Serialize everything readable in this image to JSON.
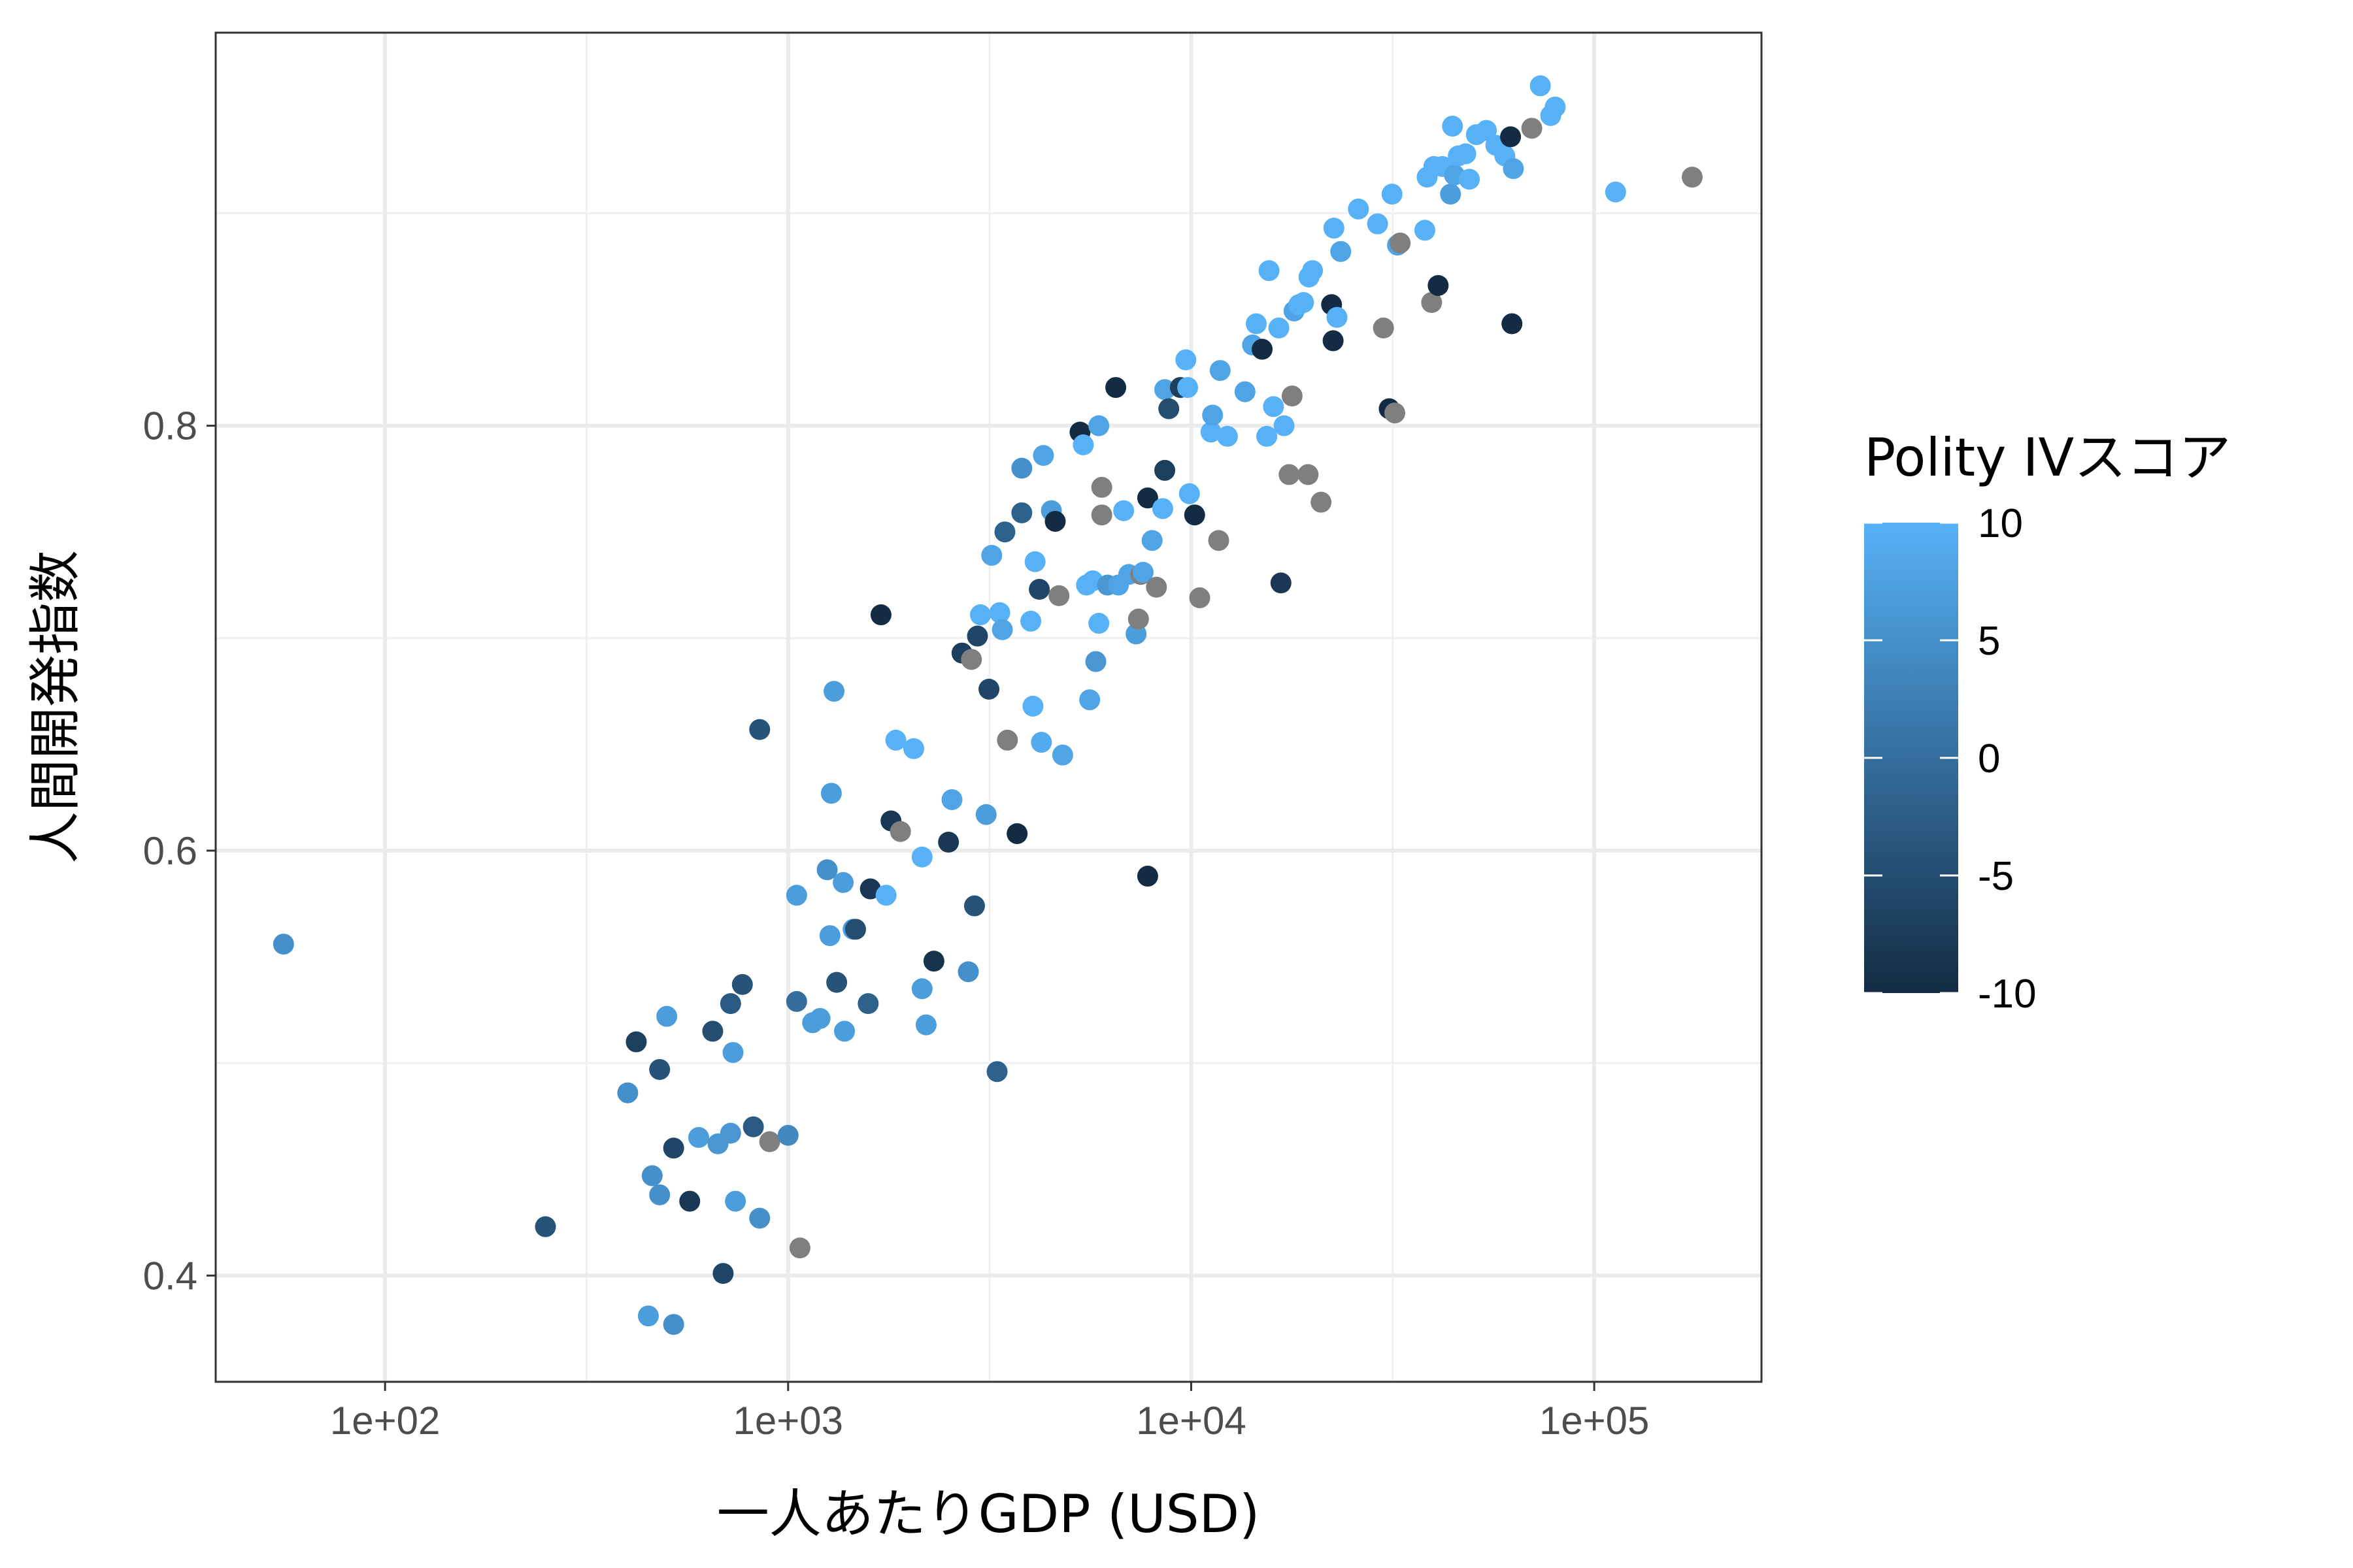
{
  "chart_data": {
    "type": "scatter",
    "title": "",
    "xlabel": "一人あたりGDP (USD)",
    "ylabel": "人間開発指数",
    "x_scale": "log10",
    "xlim": [
      38,
      260000
    ],
    "ylim": [
      0.35,
      0.985
    ],
    "x_ticks": [
      100,
      1000,
      10000,
      100000
    ],
    "x_tick_labels": [
      "1e+02",
      "1e+03",
      "1e+04",
      "1e+05"
    ],
    "y_ticks": [
      0.4,
      0.6,
      0.8
    ],
    "y_tick_labels": [
      "0.4",
      "0.6",
      "0.8"
    ],
    "grid": true,
    "legend": {
      "title": "Polity IVスコア",
      "position": "right",
      "min": -10,
      "max": 10,
      "ticks": [
        10,
        5,
        0,
        -5,
        -10
      ],
      "tick_labels": [
        "10",
        "5",
        "0",
        "-5",
        "-10"
      ],
      "color_low": "#132B43",
      "color_high": "#56B1F7",
      "na_color": "#7F7F7F"
    },
    "points": [
      [
        56,
        0.556,
        5
      ],
      [
        250,
        0.423,
        -4
      ],
      [
        420,
        0.51,
        -7
      ],
      [
        400,
        0.486,
        5
      ],
      [
        480,
        0.497,
        -4
      ],
      [
        500,
        0.522,
        7
      ],
      [
        450,
        0.381,
        7
      ],
      [
        520,
        0.377,
        5
      ],
      [
        460,
        0.447,
        5
      ],
      [
        480,
        0.438,
        5
      ],
      [
        520,
        0.46,
        -6
      ],
      [
        570,
        0.435,
        -8
      ],
      [
        600,
        0.465,
        7
      ],
      [
        650,
        0.515,
        -5
      ],
      [
        670,
        0.462,
        6
      ],
      [
        690,
        0.401,
        -6
      ],
      [
        720,
        0.467,
        6
      ],
      [
        730,
        0.505,
        7
      ],
      [
        740,
        0.435,
        7
      ],
      [
        720,
        0.528,
        -3
      ],
      [
        770,
        0.537,
        -4
      ],
      [
        820,
        0.47,
        -3
      ],
      [
        850,
        0.657,
        -4
      ],
      [
        850,
        0.427,
        5
      ],
      [
        900,
        0.463,
        null
      ],
      [
        1000,
        0.466,
        4
      ],
      [
        1050,
        0.529,
        0
      ],
      [
        1070,
        0.413,
        null
      ],
      [
        1050,
        0.579,
        7
      ],
      [
        1150,
        0.519,
        7
      ],
      [
        1200,
        0.521,
        7
      ],
      [
        1250,
        0.591,
        5
      ],
      [
        1270,
        0.56,
        7
      ],
      [
        1280,
        0.627,
        7
      ],
      [
        1300,
        0.675,
        7
      ],
      [
        1320,
        0.538,
        -4
      ],
      [
        1380,
        0.515,
        7
      ],
      [
        1370,
        0.585,
        7
      ],
      [
        1450,
        0.563,
        7
      ],
      [
        1470,
        0.563,
        -5
      ],
      [
        1580,
        0.528,
        -2
      ],
      [
        1600,
        0.582,
        -8
      ],
      [
        1700,
        0.711,
        -10
      ],
      [
        1750,
        0.579,
        10
      ],
      [
        1800,
        0.614,
        -8
      ],
      [
        1850,
        0.652,
        10
      ],
      [
        1900,
        0.609,
        null
      ],
      [
        2050,
        0.648,
        10
      ],
      [
        2150,
        0.535,
        7
      ],
      [
        2150,
        0.597,
        10
      ],
      [
        2200,
        0.518,
        7
      ],
      [
        2300,
        0.548,
        -9
      ],
      [
        2500,
        0.604,
        -8
      ],
      [
        2550,
        0.624,
        8
      ],
      [
        2700,
        0.693,
        -7
      ],
      [
        2800,
        0.543,
        5
      ],
      [
        2850,
        0.69,
        null
      ],
      [
        2900,
        0.574,
        -4
      ],
      [
        3000,
        0.711,
        10
      ],
      [
        2950,
        0.701,
        -6
      ],
      [
        3100,
        0.617,
        7
      ],
      [
        3150,
        0.676,
        -6
      ],
      [
        3200,
        0.739,
        8
      ],
      [
        3300,
        0.496,
        -2
      ],
      [
        3350,
        0.712,
        10
      ],
      [
        3400,
        0.704,
        8
      ],
      [
        3450,
        0.75,
        -2
      ],
      [
        3500,
        0.652,
        null
      ],
      [
        3700,
        0.608,
        -10
      ],
      [
        3800,
        0.78,
        5
      ],
      [
        3800,
        0.759,
        -2
      ],
      [
        4000,
        0.708,
        10
      ],
      [
        4050,
        0.668,
        10
      ],
      [
        4100,
        0.736,
        10
      ],
      [
        4200,
        0.723,
        -6
      ],
      [
        4250,
        0.651,
        9
      ],
      [
        4300,
        0.786,
        8
      ],
      [
        4500,
        0.76,
        7
      ],
      [
        4600,
        0.755,
        -10
      ],
      [
        4700,
        0.72,
        null
      ],
      [
        4800,
        0.645,
        8
      ],
      [
        5300,
        0.797,
        -10
      ],
      [
        5400,
        0.791,
        10
      ],
      [
        5500,
        0.725,
        10
      ],
      [
        5600,
        0.671,
        8
      ],
      [
        5700,
        0.727,
        10
      ],
      [
        5800,
        0.689,
        6
      ],
      [
        5900,
        0.8,
        8
      ],
      [
        5900,
        0.707,
        10
      ],
      [
        6000,
        0.771,
        null
      ],
      [
        6000,
        0.758,
        null
      ],
      [
        6200,
        0.725,
        6
      ],
      [
        6500,
        0.818,
        -10
      ],
      [
        6600,
        0.725,
        8
      ],
      [
        6800,
        0.76,
        10
      ],
      [
        7000,
        0.73,
        8
      ],
      [
        7300,
        0.702,
        7
      ],
      [
        7400,
        0.709,
        null
      ],
      [
        7500,
        0.73,
        null
      ],
      [
        7600,
        0.731,
        8
      ],
      [
        7800,
        0.588,
        -10
      ],
      [
        7800,
        0.766,
        -10
      ],
      [
        8000,
        0.746,
        8
      ],
      [
        8200,
        0.724,
        null
      ],
      [
        8500,
        0.761,
        10
      ],
      [
        8600,
        0.779,
        -7
      ],
      [
        8600,
        0.817,
        8
      ],
      [
        8800,
        0.808,
        -5
      ],
      [
        9400,
        0.818,
        -7
      ],
      [
        9700,
        0.831,
        10
      ],
      [
        9800,
        0.818,
        10
      ],
      [
        9900,
        0.768,
        10
      ],
      [
        10200,
        0.758,
        -10
      ],
      [
        10500,
        0.719,
        null
      ],
      [
        11200,
        0.797,
        10
      ],
      [
        11300,
        0.805,
        8
      ],
      [
        11700,
        0.746,
        null
      ],
      [
        11800,
        0.826,
        8
      ],
      [
        12300,
        0.795,
        10
      ],
      [
        13600,
        0.816,
        8
      ],
      [
        14200,
        0.838,
        8
      ],
      [
        14500,
        0.848,
        10
      ],
      [
        15000,
        0.836,
        -10
      ],
      [
        15400,
        0.795,
        10
      ],
      [
        15600,
        0.873,
        10
      ],
      [
        16000,
        0.809,
        10
      ],
      [
        16500,
        0.846,
        10
      ],
      [
        16700,
        0.726,
        -8
      ],
      [
        17000,
        0.8,
        10
      ],
      [
        17500,
        0.777,
        null
      ],
      [
        17800,
        0.814,
        null
      ],
      [
        18000,
        0.854,
        8
      ],
      [
        18500,
        0.857,
        10
      ],
      [
        19000,
        0.858,
        10
      ],
      [
        19500,
        0.777,
        null
      ],
      [
        19600,
        0.87,
        10
      ],
      [
        20000,
        0.873,
        10
      ],
      [
        21000,
        0.764,
        null
      ],
      [
        22300,
        0.857,
        -10
      ],
      [
        22500,
        0.84,
        -10
      ],
      [
        22600,
        0.893,
        10
      ],
      [
        23000,
        0.851,
        10
      ],
      [
        23500,
        0.882,
        8
      ],
      [
        26000,
        0.902,
        10
      ],
      [
        29000,
        0.895,
        10
      ],
      [
        30000,
        0.846,
        null
      ],
      [
        31000,
        0.808,
        -10
      ],
      [
        31500,
        0.909,
        10
      ],
      [
        32000,
        0.806,
        null
      ],
      [
        32500,
        0.885,
        8
      ],
      [
        33000,
        0.886,
        null
      ],
      [
        38000,
        0.892,
        10
      ],
      [
        38500,
        0.917,
        10
      ],
      [
        39500,
        0.858,
        null
      ],
      [
        40000,
        0.922,
        10
      ],
      [
        41000,
        0.866,
        -10
      ],
      [
        42000,
        0.922,
        10
      ],
      [
        44000,
        0.909,
        7
      ],
      [
        44500,
        0.941,
        10
      ],
      [
        45000,
        0.918,
        8
      ],
      [
        46000,
        0.927,
        10
      ],
      [
        48000,
        0.928,
        10
      ],
      [
        49000,
        0.916,
        10
      ],
      [
        51000,
        0.937,
        10
      ],
      [
        54000,
        0.939,
        10
      ],
      [
        57000,
        0.932,
        10
      ],
      [
        60000,
        0.927,
        10
      ],
      [
        62000,
        0.936,
        -10
      ],
      [
        62500,
        0.848,
        -10
      ],
      [
        63000,
        0.921,
        8
      ],
      [
        70000,
        0.94,
        null
      ],
      [
        73500,
        0.96,
        10
      ],
      [
        78000,
        0.946,
        10
      ],
      [
        80000,
        0.95,
        10
      ],
      [
        113000,
        0.91,
        10
      ],
      [
        175000,
        0.917,
        null
      ]
    ]
  }
}
